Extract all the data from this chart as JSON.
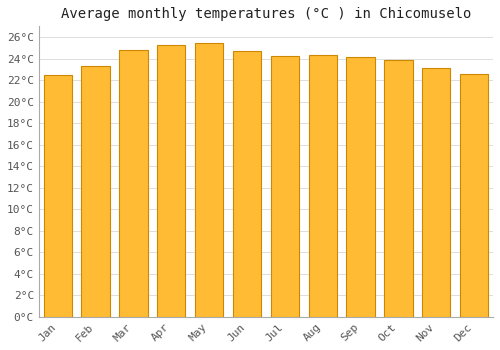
{
  "title": "Average monthly temperatures (°C ) in Chicomuselo",
  "months": [
    "Jan",
    "Feb",
    "Mar",
    "Apr",
    "May",
    "Jun",
    "Jul",
    "Aug",
    "Sep",
    "Oct",
    "Nov",
    "Dec"
  ],
  "values": [
    22.5,
    23.3,
    24.8,
    25.3,
    25.4,
    24.7,
    24.2,
    24.3,
    24.1,
    23.9,
    23.1,
    22.6
  ],
  "bar_color": "#FFA500",
  "bar_edge_color": "#CC8800",
  "background_color": "#FFFFFF",
  "plot_bg_color": "#FFFFFF",
  "grid_color": "#DDDDDD",
  "ylim": [
    0,
    27
  ],
  "ytick_step": 2,
  "title_fontsize": 10,
  "tick_fontsize": 8,
  "font_family": "monospace"
}
